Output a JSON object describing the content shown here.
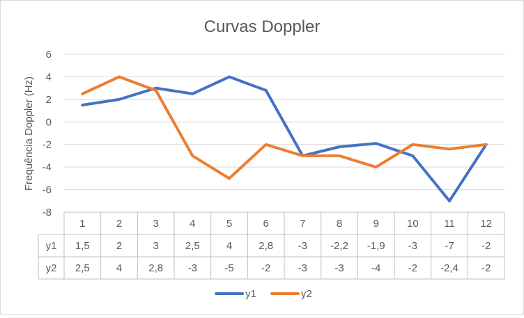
{
  "chart_data": {
    "type": "line",
    "title": "Curvas Doppler",
    "ylabel": "Frequência Doppler (Hz)",
    "xlabel": "",
    "categories": [
      "1",
      "2",
      "3",
      "4",
      "5",
      "6",
      "7",
      "8",
      "9",
      "10",
      "11",
      "12"
    ],
    "ylim": [
      -8,
      6
    ],
    "yticks": [
      6,
      4,
      2,
      0,
      -2,
      -4,
      -6,
      -8
    ],
    "grid": true,
    "legend_position": "bottom",
    "data_table": true,
    "series": [
      {
        "name": "y1",
        "color": "#4472C4",
        "values": [
          1.5,
          2,
          3,
          2.5,
          4,
          2.8,
          -3,
          -2.2,
          -1.9,
          -3,
          -7,
          -2
        ],
        "labels": [
          "1,5",
          "2",
          "3",
          "2,5",
          "4",
          "2,8",
          "-3",
          "-2,2",
          "-1,9",
          "-3",
          "-7",
          "-2"
        ]
      },
      {
        "name": "y2",
        "color": "#ED7D31",
        "values": [
          2.5,
          4,
          2.8,
          -3,
          -5,
          -2,
          -3,
          -3,
          -4,
          -2,
          -2.4,
          -2
        ],
        "labels": [
          "2,5",
          "4",
          "2,8",
          "-3",
          "-5",
          "-2",
          "-3",
          "-3",
          "-4",
          "-2",
          "-2,4",
          "-2"
        ]
      }
    ]
  }
}
